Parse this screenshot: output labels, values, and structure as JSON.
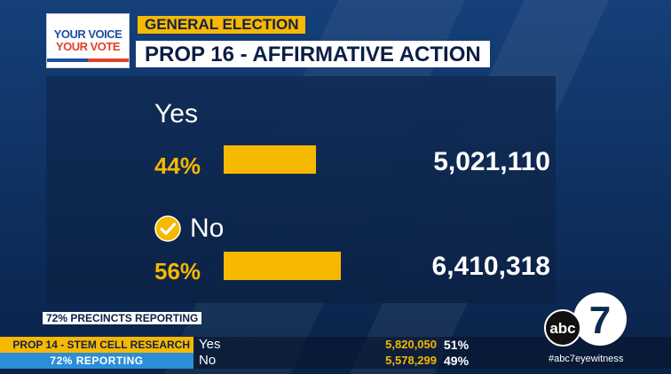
{
  "logo": {
    "line1": "YOUR VOICE",
    "line2": "YOUR VOTE"
  },
  "header": {
    "tag": "GENERAL ELECTION",
    "title": "PROP 16 - AFFIRMATIVE ACTION"
  },
  "results": [
    {
      "label": "Yes",
      "percent": "44%",
      "votes": "5,021,110",
      "share": 0.44,
      "winner": false
    },
    {
      "label": "No",
      "percent": "56%",
      "votes": "6,410,318",
      "share": 0.56,
      "winner": true
    }
  ],
  "precincts": "72% PRECINCTS REPORTING",
  "ticker": {
    "prop": "PROP 14 - STEM CELL RESEARCH",
    "reporting": "72% REPORTING",
    "rows": [
      {
        "choice": "Yes",
        "votes": "5,820,050",
        "percent": "51%"
      },
      {
        "choice": "No",
        "votes": "5,578,299",
        "percent": "49%"
      }
    ]
  },
  "branding": {
    "logo_text": "abc",
    "channel_number": "7",
    "hashtag": "#abc7eyewitness"
  },
  "colors": {
    "accent": "#f6b800",
    "background": "#0c2a52",
    "ticker_blue": "#2a8ed8"
  },
  "icons": {
    "winner": "checkmark-circle-icon"
  }
}
